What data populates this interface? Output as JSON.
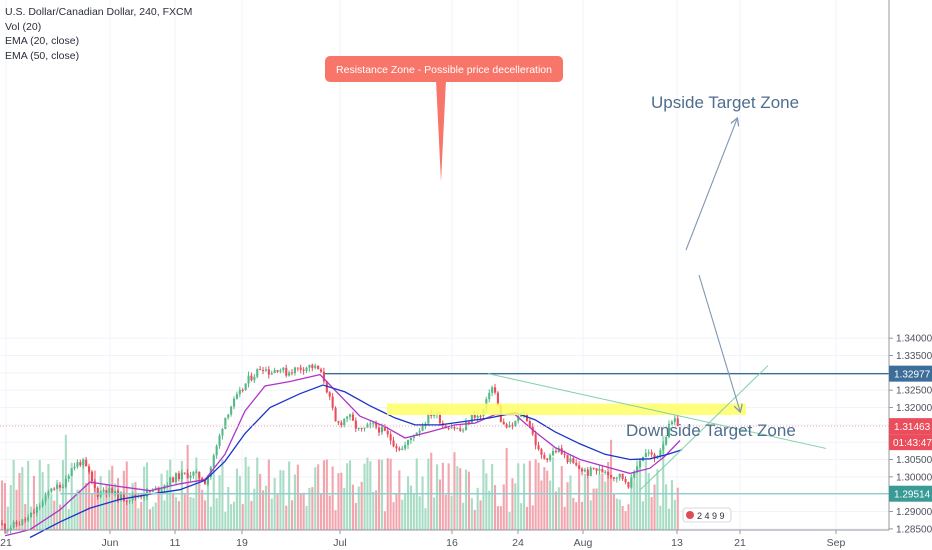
{
  "legend": {
    "symbol": "U.S. Dollar/Canadian Dollar, 240, FXCM",
    "indicators": [
      "Vol (20)",
      "EMA (20, close)",
      "EMA (50, close)"
    ]
  },
  "colors": {
    "up": "#53b987",
    "down": "#eb4d5c",
    "vol_up": "#a8dcc4",
    "vol_down": "#f3a5ad",
    "ema20": "#b134c8",
    "ema50": "#1a34c8",
    "resistance_band": "#ffff66",
    "callout": "#f77669",
    "target_line": "#3c6e99",
    "low_line": "#8ecfcc",
    "trend_line": "#80cfa9",
    "arrow": "#7f97b3",
    "price_tag": "#eb4d5c"
  },
  "annotations": {
    "callout": "Resistance Zone - Possible price decelleration",
    "upside": "Upside Target Zone",
    "downside": "Downside Target Zone"
  },
  "price_tags": {
    "upper_target": "1.32977",
    "last_price": "1.31463",
    "countdown": "01:43:47",
    "lower_target": "1.29514"
  },
  "footer_badge": "2 4 9 9",
  "chart_data": {
    "type": "candlestick",
    "title": "U.S. Dollar/Canadian Dollar, 240, FXCM",
    "y_ticks": [
      "1.34000",
      "1.33500",
      "1.33000",
      "1.32500",
      "1.32000",
      "1.31500",
      "1.31000",
      "1.30500",
      "1.30000",
      "1.29500",
      "1.29000",
      "1.28500"
    ],
    "y_range": [
      1.2818,
      1.3422
    ],
    "x_ticks": [
      "21",
      "Jun",
      "11",
      "19",
      "Jul",
      "16",
      "24",
      "Aug",
      "13",
      "21",
      "Sep"
    ],
    "levels": {
      "upside_target": 1.32977,
      "downside_target": 1.29514,
      "last_price": 1.31463,
      "resistance_zone": [
        1.319,
        1.32
      ]
    },
    "close_path": [
      [
        0,
        1.2865
      ],
      [
        6,
        1.2852
      ],
      [
        12,
        1.2858
      ],
      [
        20,
        1.2868
      ],
      [
        28,
        1.288
      ],
      [
        36,
        1.2905
      ],
      [
        45,
        1.2935
      ],
      [
        52,
        1.2975
      ],
      [
        60,
        1.2965
      ],
      [
        68,
        1.301
      ],
      [
        75,
        1.3035
      ],
      [
        82,
        1.3045
      ],
      [
        88,
        1.3015
      ],
      [
        93,
        1.2975
      ],
      [
        98,
        1.295
      ],
      [
        104,
        1.2965
      ],
      [
        112,
        1.2955
      ],
      [
        120,
        1.294
      ],
      [
        128,
        1.2938
      ],
      [
        136,
        1.2945
      ],
      [
        144,
        1.295
      ],
      [
        152,
        1.2958
      ],
      [
        160,
        1.2968
      ],
      [
        168,
        1.2985
      ],
      [
        176,
        1.3
      ],
      [
        184,
        1.3005
      ],
      [
        192,
        1.301
      ],
      [
        200,
        1.3
      ],
      [
        206,
        1.2985
      ],
      [
        212,
        1.304
      ],
      [
        218,
        1.31
      ],
      [
        224,
        1.3165
      ],
      [
        230,
        1.32
      ],
      [
        236,
        1.3225
      ],
      [
        242,
        1.325
      ],
      [
        248,
        1.328
      ],
      [
        254,
        1.3295
      ],
      [
        262,
        1.332
      ],
      [
        270,
        1.33
      ],
      [
        278,
        1.3315
      ],
      [
        286,
        1.33
      ],
      [
        294,
        1.331
      ],
      [
        302,
        1.3315
      ],
      [
        310,
        1.332
      ],
      [
        318,
        1.331
      ],
      [
        324,
        1.328
      ],
      [
        330,
        1.322
      ],
      [
        336,
        1.315
      ],
      [
        342,
        1.316
      ],
      [
        348,
        1.318
      ],
      [
        354,
        1.315
      ],
      [
        360,
        1.313
      ],
      [
        366,
        1.314
      ],
      [
        372,
        1.315
      ],
      [
        378,
        1.314
      ],
      [
        384,
        1.313
      ],
      [
        390,
        1.311
      ],
      [
        396,
        1.309
      ],
      [
        402,
        1.308
      ],
      [
        408,
        1.31
      ],
      [
        414,
        1.3125
      ],
      [
        420,
        1.314
      ],
      [
        426,
        1.3165
      ],
      [
        432,
        1.3185
      ],
      [
        438,
        1.3175
      ],
      [
        444,
        1.3145
      ],
      [
        450,
        1.315
      ],
      [
        456,
        1.314
      ],
      [
        462,
        1.313
      ],
      [
        468,
        1.316
      ],
      [
        474,
        1.318
      ],
      [
        480,
        1.317
      ],
      [
        486,
        1.321
      ],
      [
        490,
        1.326
      ],
      [
        494,
        1.3255
      ],
      [
        498,
        1.32
      ],
      [
        502,
        1.315
      ],
      [
        506,
        1.3145
      ],
      [
        510,
        1.314
      ],
      [
        516,
        1.316
      ],
      [
        522,
        1.3185
      ],
      [
        528,
        1.3165
      ],
      [
        534,
        1.311
      ],
      [
        540,
        1.306
      ],
      [
        546,
        1.3055
      ],
      [
        552,
        1.307
      ],
      [
        558,
        1.308
      ],
      [
        564,
        1.306
      ],
      [
        570,
        1.3045
      ],
      [
        576,
        1.303
      ],
      [
        582,
        1.302
      ],
      [
        588,
        1.301
      ],
      [
        594,
        1.3025
      ],
      [
        600,
        1.3015
      ],
      [
        606,
        1.302
      ],
      [
        612,
        1.3
      ],
      [
        618,
        1.3005
      ],
      [
        624,
        1.2995
      ],
      [
        630,
        1.2975
      ],
      [
        636,
        1.303
      ],
      [
        642,
        1.306
      ],
      [
        648,
        1.307
      ],
      [
        654,
        1.305
      ],
      [
        660,
        1.308
      ],
      [
        666,
        1.312
      ],
      [
        670,
        1.315
      ],
      [
        676,
        1.316
      ],
      [
        680,
        1.3146
      ]
    ],
    "ema20_path": [
      [
        5,
        1.283
      ],
      [
        30,
        1.2848
      ],
      [
        60,
        1.2905
      ],
      [
        90,
        1.2985
      ],
      [
        120,
        1.2972
      ],
      [
        150,
        1.296
      ],
      [
        180,
        1.298
      ],
      [
        205,
        1.2992
      ],
      [
        225,
        1.3065
      ],
      [
        245,
        1.319
      ],
      [
        265,
        1.3262
      ],
      [
        290,
        1.3275
      ],
      [
        320,
        1.3295
      ],
      [
        340,
        1.3235
      ],
      [
        360,
        1.3175
      ],
      [
        385,
        1.3145
      ],
      [
        405,
        1.3112
      ],
      [
        430,
        1.313
      ],
      [
        455,
        1.315
      ],
      [
        475,
        1.3155
      ],
      [
        495,
        1.318
      ],
      [
        515,
        1.318
      ],
      [
        535,
        1.313
      ],
      [
        555,
        1.3085
      ],
      [
        580,
        1.305
      ],
      [
        605,
        1.303
      ],
      [
        630,
        1.301
      ],
      [
        650,
        1.3025
      ],
      [
        665,
        1.306
      ],
      [
        680,
        1.3105
      ]
    ],
    "ema50_path": [
      [
        30,
        1.2825
      ],
      [
        60,
        1.287
      ],
      [
        90,
        1.291
      ],
      [
        120,
        1.2935
      ],
      [
        150,
        1.295
      ],
      [
        180,
        1.2963
      ],
      [
        205,
        1.299
      ],
      [
        225,
        1.3045
      ],
      [
        245,
        1.3125
      ],
      [
        270,
        1.32
      ],
      [
        300,
        1.324
      ],
      [
        323,
        1.3265
      ],
      [
        345,
        1.3245
      ],
      [
        370,
        1.3205
      ],
      [
        395,
        1.317
      ],
      [
        415,
        1.315
      ],
      [
        440,
        1.315
      ],
      [
        465,
        1.316
      ],
      [
        490,
        1.317
      ],
      [
        515,
        1.3185
      ],
      [
        535,
        1.3165
      ],
      [
        555,
        1.313
      ],
      [
        580,
        1.3095
      ],
      [
        605,
        1.3065
      ],
      [
        630,
        1.305
      ],
      [
        650,
        1.3052
      ],
      [
        668,
        1.3065
      ],
      [
        682,
        1.3078
      ]
    ]
  }
}
